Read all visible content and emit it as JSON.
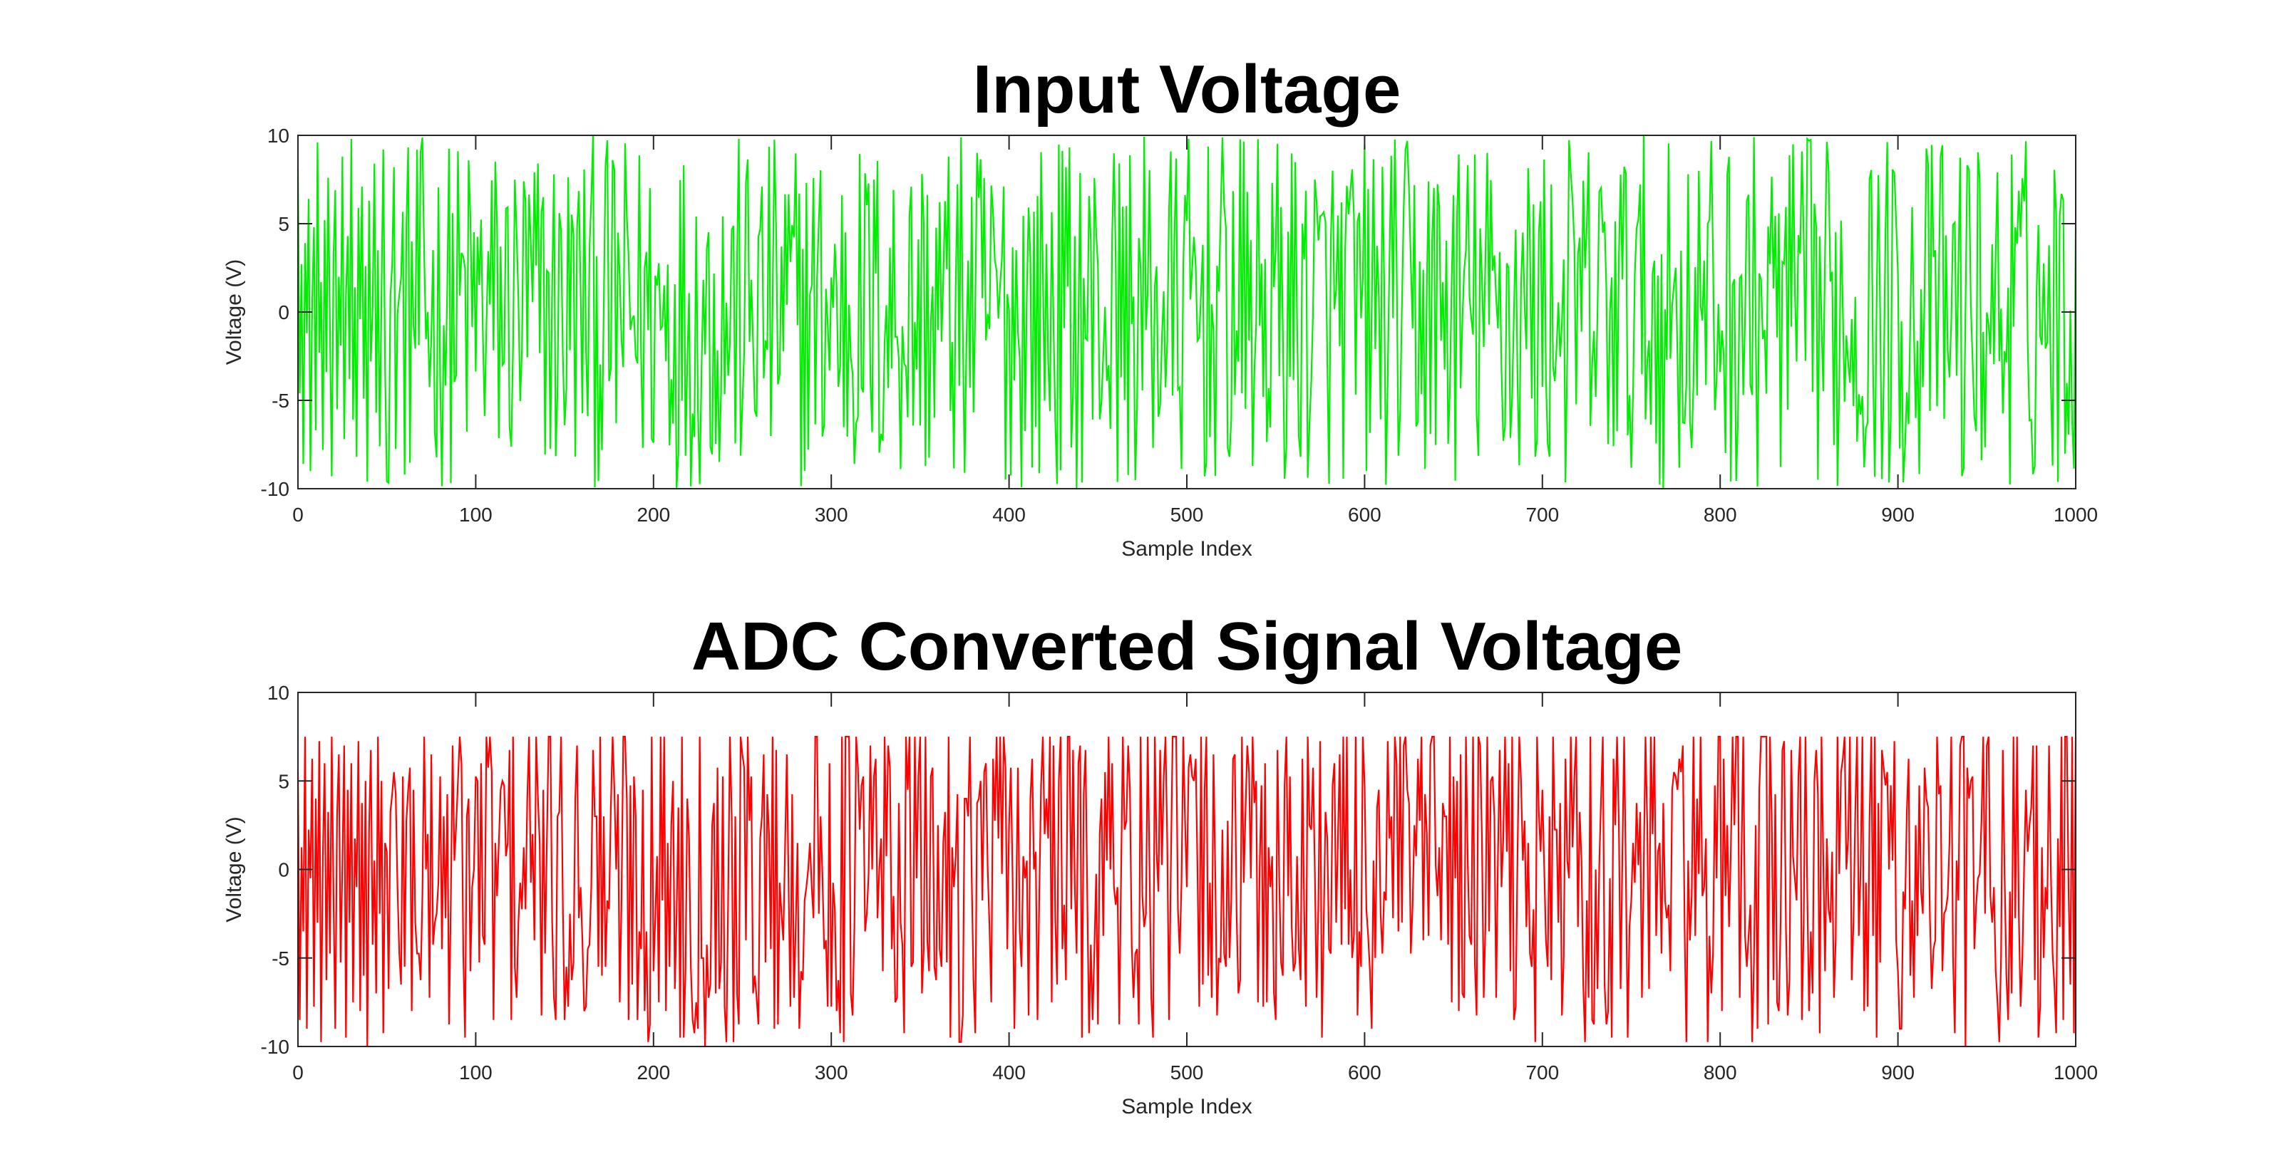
{
  "chart_data": [
    {
      "type": "line",
      "title": "Input Voltage",
      "xlabel": "Sample Index",
      "ylabel": "Voltage (V)",
      "xlim": [
        0,
        1000
      ],
      "ylim": [
        -10,
        10
      ],
      "xticks": [
        0,
        100,
        200,
        300,
        400,
        500,
        600,
        700,
        800,
        900,
        1000
      ],
      "yticks": [
        -10,
        -5,
        0,
        5,
        10
      ],
      "xtick_labels": [
        "0",
        "100",
        "200",
        "300",
        "400",
        "500",
        "600",
        "700",
        "800",
        "900",
        "1000"
      ],
      "ytick_labels": [
        "-10",
        "-5",
        "0",
        "5",
        "10"
      ],
      "grid": false,
      "series": [
        {
          "color": "#00ee00",
          "x_start": 0,
          "x_end": 1000,
          "distribution": "uniform random samples in [-10, 10]",
          "values": [
            8.1,
            -4.6,
            2.7,
            -8.6,
            3.9,
            -1.2,
            6.4,
            -9.0,
            0.5,
            4.8,
            -6.7,
            9.6,
            -2.3,
            1.7,
            -7.8,
            5.2,
            -3.4,
            7.6,
            -0.8,
            -9.3,
            3.1,
            6.9,
            -5.5,
            2.0,
            -1.9,
            8.8,
            -7.2,
            0.9,
            4.3,
            -3.8,
            9.8,
            -6.1,
            1.4,
            -8.2,
            5.9,
            -0.4,
            7.1,
            -4.9,
            2.6,
            -9.6,
            6.3,
            -2.8,
            0.2,
            8.4,
            -5.7,
            3.5,
            -7.6,
            1.1,
            9.2,
            -3.1
          ]
        }
      ]
    },
    {
      "type": "line",
      "title": "ADC Converted Signal Voltage",
      "xlabel": "Sample Index",
      "ylabel": "Voltage (V)",
      "xlim": [
        0,
        1000
      ],
      "ylim": [
        -10,
        10
      ],
      "xticks": [
        0,
        100,
        200,
        300,
        400,
        500,
        600,
        700,
        800,
        900,
        1000
      ],
      "yticks": [
        -10,
        -5,
        0,
        5,
        10
      ],
      "xtick_labels": [
        "0",
        "100",
        "200",
        "300",
        "400",
        "500",
        "600",
        "700",
        "800",
        "900",
        "1000"
      ],
      "ytick_labels": [
        "-10",
        "-5",
        "0",
        "5",
        "10"
      ],
      "grid": false,
      "series": [
        {
          "color": "#ff0000",
          "x_start": 0,
          "x_end": 1000,
          "distribution": "quantized samples, clipped high near 7.5 V, low near -10 V",
          "values": [
            5.4,
            -8.5,
            1.3,
            -3.5,
            7.4,
            -9.1,
            2.3,
            -0.5,
            6.2,
            -7.8,
            4.1,
            -2.9,
            7.2,
            -9.8,
            0.8,
            5.9,
            -6.3,
            3.2,
            -4.7,
            7.5,
            -1.6,
            -8.9,
            2.9,
            6.6,
            -5.2,
            0.3,
            7.1,
            -9.5,
            4.5,
            -3.0,
            6.0,
            -7.4,
            1.8,
            -0.9,
            7.3,
            -8.1,
            3.7,
            -5.9,
            5.0,
            -9.9,
            2.2,
            6.8,
            -4.2,
            0.6,
            -7.0,
            7.4,
            -2.5,
            4.9,
            -9.2,
            1.5
          ]
        }
      ]
    }
  ]
}
